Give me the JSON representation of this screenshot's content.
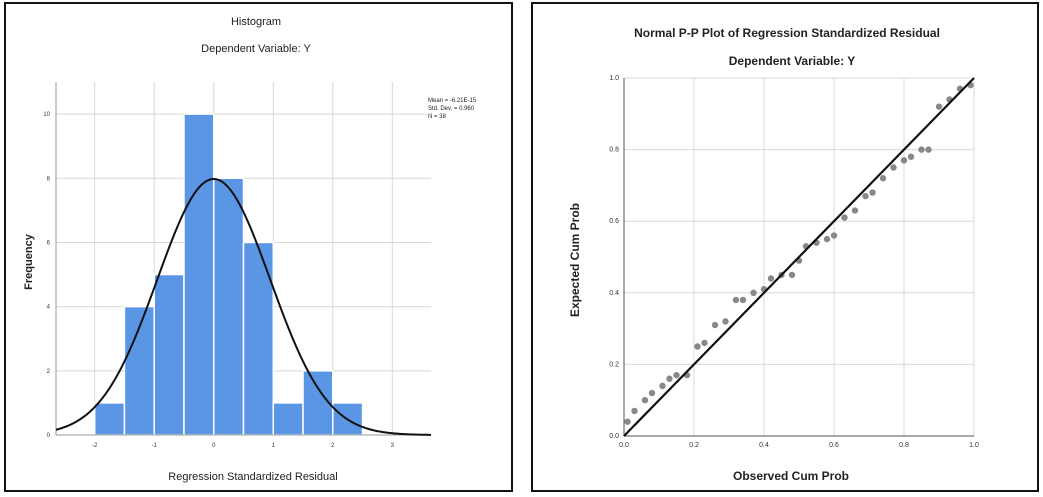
{
  "chart_data": [
    {
      "type": "bar",
      "title": "Histogram",
      "subtitle": "Dependent Variable: Y",
      "xlabel": "Regression Standardized Residual",
      "ylabel": "Frequency",
      "bins": [
        {
          "from": -2.0,
          "to": -1.5,
          "value": 1
        },
        {
          "from": -1.5,
          "to": -1.0,
          "value": 4
        },
        {
          "from": -1.0,
          "to": -0.5,
          "value": 5
        },
        {
          "from": -0.5,
          "to": 0.0,
          "value": 10
        },
        {
          "from": 0.0,
          "to": 0.5,
          "value": 8
        },
        {
          "from": 0.5,
          "to": 1.0,
          "value": 6
        },
        {
          "from": 1.0,
          "to": 1.5,
          "value": 1
        },
        {
          "from": 1.5,
          "to": 2.0,
          "value": 2
        },
        {
          "from": 2.0,
          "to": 2.5,
          "value": 1
        }
      ],
      "x_ticks": [
        -2,
        -1,
        0,
        1,
        2,
        3
      ],
      "y_ticks": [
        0,
        2,
        4,
        6,
        8,
        10
      ],
      "xlim": [
        -2.65,
        3.65
      ],
      "ylim": [
        0,
        11
      ],
      "normal_curve": {
        "mean": 0,
        "sd": 0.95,
        "n": 38,
        "bin_width": 0.5
      },
      "stats_lines": [
        "Mean = -6.21E-15",
        "Std. Dev. = 0.960",
        "N = 38"
      ],
      "bar_color": "#5b96e4",
      "curve_color": "#111111",
      "grid": true
    },
    {
      "type": "scatter",
      "title": "Normal P-P Plot of Regression Standardized Residual",
      "subtitle": "Dependent Variable: Y",
      "xlabel": "Observed Cum Prob",
      "ylabel": "Expected Cum Prob",
      "xlim": [
        0,
        1
      ],
      "ylim": [
        0,
        1
      ],
      "x_ticks": [
        "0.0",
        "0.2",
        "0.4",
        "0.6",
        "0.8",
        "1.0"
      ],
      "y_ticks": [
        "0.0",
        "0.2",
        "0.4",
        "0.6",
        "0.8",
        "1.0"
      ],
      "reference_line": [
        [
          0,
          0
        ],
        [
          1,
          1
        ]
      ],
      "points": [
        [
          0.01,
          0.04
        ],
        [
          0.03,
          0.07
        ],
        [
          0.06,
          0.1
        ],
        [
          0.08,
          0.12
        ],
        [
          0.11,
          0.14
        ],
        [
          0.13,
          0.16
        ],
        [
          0.15,
          0.17
        ],
        [
          0.18,
          0.17
        ],
        [
          0.21,
          0.25
        ],
        [
          0.23,
          0.26
        ],
        [
          0.26,
          0.31
        ],
        [
          0.29,
          0.32
        ],
        [
          0.32,
          0.38
        ],
        [
          0.34,
          0.38
        ],
        [
          0.37,
          0.4
        ],
        [
          0.4,
          0.41
        ],
        [
          0.42,
          0.44
        ],
        [
          0.45,
          0.45
        ],
        [
          0.48,
          0.45
        ],
        [
          0.5,
          0.49
        ],
        [
          0.52,
          0.53
        ],
        [
          0.55,
          0.54
        ],
        [
          0.58,
          0.55
        ],
        [
          0.6,
          0.56
        ],
        [
          0.63,
          0.61
        ],
        [
          0.66,
          0.63
        ],
        [
          0.69,
          0.67
        ],
        [
          0.71,
          0.68
        ],
        [
          0.74,
          0.72
        ],
        [
          0.77,
          0.75
        ],
        [
          0.8,
          0.77
        ],
        [
          0.82,
          0.78
        ],
        [
          0.85,
          0.8
        ],
        [
          0.87,
          0.8
        ],
        [
          0.9,
          0.92
        ],
        [
          0.93,
          0.94
        ],
        [
          0.96,
          0.97
        ],
        [
          0.99,
          0.98
        ]
      ],
      "point_color": "#888888",
      "line_color": "#111111",
      "grid": true
    }
  ]
}
